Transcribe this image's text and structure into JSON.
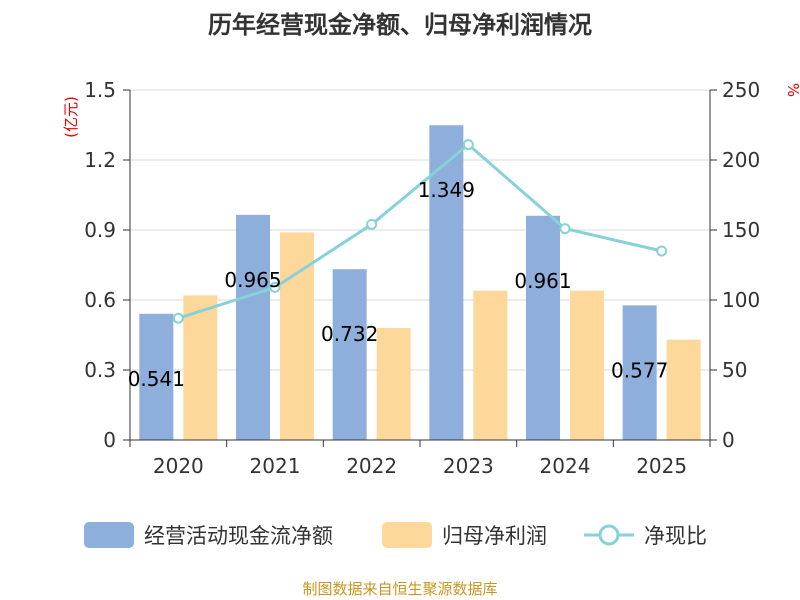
{
  "colors": {
    "cash_flow": "#8eaedb",
    "net_profit": "#fdd89a",
    "ratio_line": "#86d2d6",
    "grid": "#d9d9d9",
    "axis": "#333333",
    "unit_text": "#e60000",
    "source_text": "#c8961e"
  },
  "chart_data": {
    "type": "bar",
    "title": "历年经营现金净额、归母净利润情况",
    "left_axis_unit": "(亿元)",
    "right_axis_unit": "%",
    "categories": [
      "2020",
      "2021",
      "2022",
      "2023",
      "2024",
      "2025"
    ],
    "left_ylim": [
      0,
      1.5
    ],
    "left_ticks": [
      "0",
      "0.3",
      "0.6",
      "0.9",
      "1.2",
      "1.5"
    ],
    "right_ylim": [
      0,
      250
    ],
    "right_ticks": [
      "0",
      "50",
      "100",
      "150",
      "200",
      "250"
    ],
    "grid": true,
    "legend_position": "bottom",
    "series": [
      {
        "name": "经营活动现金流净额",
        "type": "bar",
        "axis": "left",
        "values": [
          0.541,
          0.965,
          0.732,
          1.349,
          0.961,
          0.577
        ],
        "labels": [
          "0.541",
          "0.965",
          "0.732",
          "1.349",
          "0.961",
          "0.577"
        ]
      },
      {
        "name": "归母净利润",
        "type": "bar",
        "axis": "left",
        "values": [
          0.62,
          0.89,
          0.48,
          0.64,
          0.64,
          0.43
        ]
      },
      {
        "name": "净现比",
        "type": "line",
        "axis": "right",
        "values": [
          87,
          109,
          154,
          211,
          151,
          135
        ]
      }
    ],
    "source": "制图数据来自恒生聚源数据库"
  }
}
